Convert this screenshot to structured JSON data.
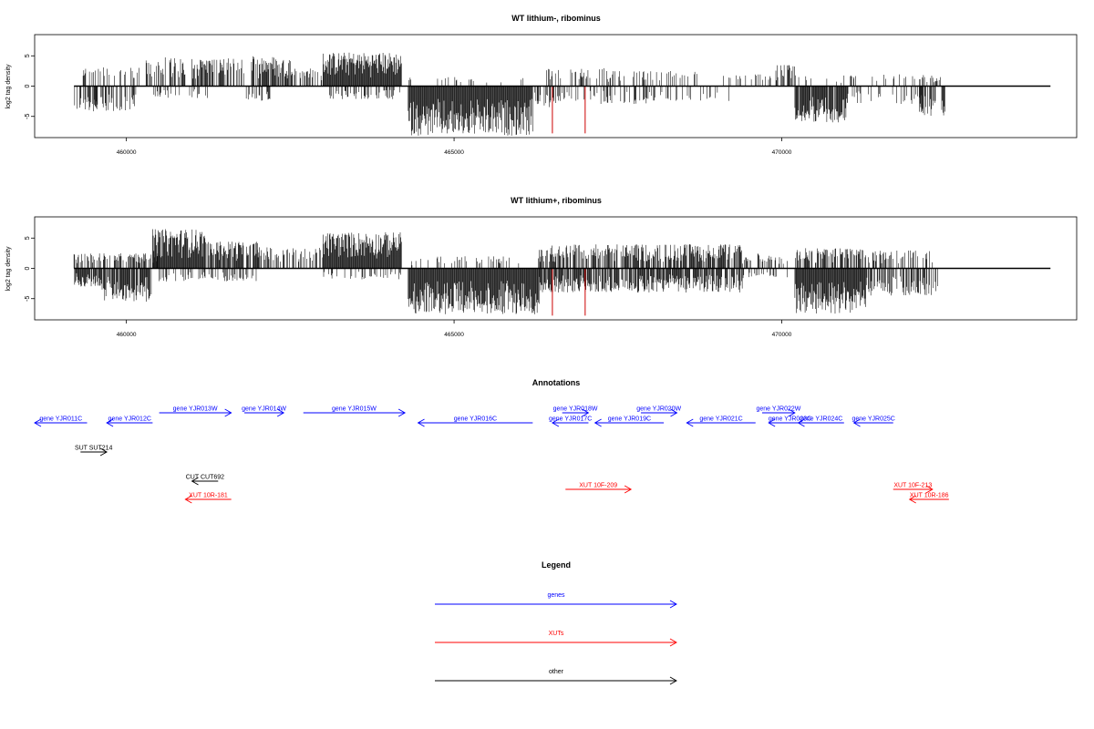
{
  "colors": {
    "gene": "#0000ff",
    "xut": "#ff0000",
    "other": "#000000",
    "red_mark": "#cc0000"
  },
  "chart_data": [
    {
      "type": "bar",
      "title": "WT lithium-, ribominus",
      "ylabel": "log2 tag density",
      "xlim": [
        458600,
        474500
      ],
      "ylim": [
        -8.5,
        8.5
      ],
      "xticks": [
        460000,
        465000,
        470000
      ],
      "xtick_labels": [
        "460000",
        "465000",
        "470000"
      ],
      "yticks": [
        5,
        0,
        -5
      ],
      "ytick_labels": [
        "5",
        "0",
        "-5"
      ],
      "baseline_range": [
        459200,
        474100
      ],
      "segments": [
        {
          "start": 459200,
          "end": 459550,
          "sign": -1,
          "amp": 4.0,
          "density": 0.6
        },
        {
          "start": 459300,
          "end": 460200,
          "sign": 1,
          "amp": 3.2,
          "density": 0.3
        },
        {
          "start": 459500,
          "end": 460150,
          "sign": -1,
          "amp": 4.2,
          "density": 0.5
        },
        {
          "start": 460300,
          "end": 460900,
          "sign": 1,
          "amp": 4.8,
          "density": 0.6
        },
        {
          "start": 460400,
          "end": 461300,
          "sign": -1,
          "amp": 2.0,
          "density": 0.25
        },
        {
          "start": 461000,
          "end": 461800,
          "sign": 1,
          "amp": 4.6,
          "density": 0.65
        },
        {
          "start": 461800,
          "end": 462200,
          "sign": -1,
          "amp": 2.5,
          "density": 0.4
        },
        {
          "start": 461900,
          "end": 462600,
          "sign": 1,
          "amp": 5.0,
          "density": 0.75
        },
        {
          "start": 462600,
          "end": 463000,
          "sign": 1,
          "amp": 3.0,
          "density": 0.4
        },
        {
          "start": 463000,
          "end": 464200,
          "sign": 1,
          "amp": 5.6,
          "density": 1.0
        },
        {
          "start": 463100,
          "end": 464200,
          "sign": -1,
          "amp": 2.2,
          "density": 0.3
        },
        {
          "start": 464300,
          "end": 466200,
          "sign": -1,
          "amp": 8.2,
          "density": 1.0
        },
        {
          "start": 464300,
          "end": 466100,
          "sign": 1,
          "amp": 1.5,
          "density": 0.1
        },
        {
          "start": 466200,
          "end": 466600,
          "sign": -1,
          "amp": 3.5,
          "density": 0.4
        },
        {
          "start": 466400,
          "end": 467300,
          "sign": 1,
          "amp": 3.0,
          "density": 0.3
        },
        {
          "start": 466500,
          "end": 468000,
          "sign": -1,
          "amp": 3.0,
          "density": 0.3
        },
        {
          "start": 467300,
          "end": 468800,
          "sign": 1,
          "amp": 2.5,
          "density": 0.25
        },
        {
          "start": 467800,
          "end": 469200,
          "sign": -1,
          "amp": 2.5,
          "density": 0.22
        },
        {
          "start": 469000,
          "end": 469900,
          "sign": 1,
          "amp": 2.0,
          "density": 0.18
        },
        {
          "start": 469900,
          "end": 470200,
          "sign": 1,
          "amp": 3.5,
          "density": 0.6
        },
        {
          "start": 470200,
          "end": 471000,
          "sign": -1,
          "amp": 6.0,
          "density": 0.9
        },
        {
          "start": 470200,
          "end": 471100,
          "sign": 1,
          "amp": 1.8,
          "density": 0.15
        },
        {
          "start": 471000,
          "end": 472200,
          "sign": -1,
          "amp": 3.0,
          "density": 0.18
        },
        {
          "start": 471100,
          "end": 472300,
          "sign": 1,
          "amp": 2.0,
          "density": 0.15
        },
        {
          "start": 472100,
          "end": 472500,
          "sign": -1,
          "amp": 5.0,
          "density": 0.5
        },
        {
          "start": 472100,
          "end": 472500,
          "sign": 1,
          "amp": 1.5,
          "density": 0.3
        }
      ],
      "red_marks": [
        466500,
        467000
      ],
      "red_mark_depth": -7.8
    },
    {
      "type": "bar",
      "title": "WT lithium+, ribominus",
      "ylabel": "log2 tag density",
      "xlim": [
        458600,
        474500
      ],
      "ylim": [
        -8.5,
        8.5
      ],
      "xticks": [
        460000,
        465000,
        470000
      ],
      "xtick_labels": [
        "460000",
        "465000",
        "470000"
      ],
      "yticks": [
        5,
        0,
        -5
      ],
      "ytick_labels": [
        "5",
        "0",
        "-5"
      ],
      "baseline_range": [
        459200,
        474100
      ],
      "segments": [
        {
          "start": 459200,
          "end": 459600,
          "sign": -1,
          "amp": 3.0,
          "density": 0.9
        },
        {
          "start": 459200,
          "end": 460500,
          "sign": 1,
          "amp": 2.5,
          "density": 0.5
        },
        {
          "start": 459600,
          "end": 460400,
          "sign": -1,
          "amp": 5.5,
          "density": 0.8
        },
        {
          "start": 460400,
          "end": 461200,
          "sign": 1,
          "amp": 6.5,
          "density": 1.0
        },
        {
          "start": 461200,
          "end": 462000,
          "sign": 1,
          "amp": 4.5,
          "density": 0.8
        },
        {
          "start": 460500,
          "end": 462000,
          "sign": -1,
          "amp": 2.2,
          "density": 0.3
        },
        {
          "start": 462000,
          "end": 463000,
          "sign": 1,
          "amp": 3.5,
          "density": 0.5
        },
        {
          "start": 463000,
          "end": 464200,
          "sign": 1,
          "amp": 6.0,
          "density": 1.0
        },
        {
          "start": 463000,
          "end": 464200,
          "sign": -1,
          "amp": 1.8,
          "density": 0.3
        },
        {
          "start": 464300,
          "end": 466300,
          "sign": -1,
          "amp": 7.6,
          "density": 1.0
        },
        {
          "start": 464300,
          "end": 466300,
          "sign": 1,
          "amp": 2.0,
          "density": 0.15
        },
        {
          "start": 466300,
          "end": 469400,
          "sign": 1,
          "amp": 4.0,
          "density": 0.75
        },
        {
          "start": 466300,
          "end": 469400,
          "sign": -1,
          "amp": 4.0,
          "density": 0.75
        },
        {
          "start": 469400,
          "end": 470100,
          "sign": 1,
          "amp": 2.5,
          "density": 0.3
        },
        {
          "start": 469400,
          "end": 470100,
          "sign": -1,
          "amp": 2.0,
          "density": 0.3
        },
        {
          "start": 470200,
          "end": 471300,
          "sign": -1,
          "amp": 7.5,
          "density": 1.0
        },
        {
          "start": 470200,
          "end": 471300,
          "sign": 1,
          "amp": 3.5,
          "density": 0.6
        },
        {
          "start": 471300,
          "end": 472300,
          "sign": 1,
          "amp": 3.0,
          "density": 0.5
        },
        {
          "start": 471300,
          "end": 472400,
          "sign": -1,
          "amp": 4.5,
          "density": 0.6
        }
      ],
      "red_marks": [
        466500,
        467000
      ],
      "red_mark_depth": -7.8
    }
  ],
  "annotations": {
    "title": "Annotations",
    "features": [
      {
        "label": "gene YJR011C",
        "start": 458600,
        "end": 459400,
        "strand": "-",
        "kind": "gene",
        "row": 1
      },
      {
        "label": "gene YJR012C",
        "start": 459700,
        "end": 460400,
        "strand": "-",
        "kind": "gene",
        "row": 1
      },
      {
        "label": "gene YJR013W",
        "start": 460500,
        "end": 461600,
        "strand": "+",
        "kind": "gene",
        "row": 0
      },
      {
        "label": "gene YJR014W",
        "start": 461800,
        "end": 462400,
        "strand": "+",
        "kind": "gene",
        "row": 0
      },
      {
        "label": "gene YJR015W",
        "start": 462700,
        "end": 464250,
        "strand": "+",
        "kind": "gene",
        "row": 0
      },
      {
        "label": "gene YJR016C",
        "start": 464450,
        "end": 466200,
        "strand": "-",
        "kind": "gene",
        "row": 1
      },
      {
        "label": "gene YJR017C",
        "start": 466500,
        "end": 467050,
        "strand": "-",
        "kind": "gene",
        "row": 1
      },
      {
        "label": "gene YJR018W",
        "start": 466650,
        "end": 467050,
        "strand": "+",
        "kind": "gene",
        "row": 0
      },
      {
        "label": "gene YJR019C",
        "start": 467150,
        "end": 468200,
        "strand": "-",
        "kind": "gene",
        "row": 1
      },
      {
        "label": "gene YJR020W",
        "start": 467850,
        "end": 468400,
        "strand": "+",
        "kind": "gene",
        "row": 0
      },
      {
        "label": "gene YJR021C",
        "start": 468550,
        "end": 469600,
        "strand": "-",
        "kind": "gene",
        "row": 1
      },
      {
        "label": "gene YJR022W",
        "start": 469700,
        "end": 470200,
        "strand": "+",
        "kind": "gene",
        "row": 0
      },
      {
        "label": "gene YJR023C",
        "start": 469800,
        "end": 470450,
        "strand": "-",
        "kind": "gene",
        "row": 1
      },
      {
        "label": "gene YJR024C",
        "start": 470250,
        "end": 470950,
        "strand": "-",
        "kind": "gene",
        "row": 1
      },
      {
        "label": "gene YJR025C",
        "start": 471100,
        "end": 471700,
        "strand": "-",
        "kind": "gene",
        "row": 1
      },
      {
        "label": "SUT SUT214",
        "start": 459300,
        "end": 459700,
        "strand": "+",
        "kind": "other",
        "row": 3
      },
      {
        "label": "CUT CUT692",
        "start": 461000,
        "end": 461400,
        "strand": "-",
        "kind": "other",
        "row": 6
      },
      {
        "label": "XUT 10R-181",
        "start": 460900,
        "end": 461600,
        "strand": "-",
        "kind": "xut",
        "row": 8
      },
      {
        "label": "XUT 10F-209",
        "start": 466700,
        "end": 467700,
        "strand": "+",
        "kind": "xut",
        "row": 7
      },
      {
        "label": "XUT 10F-213",
        "start": 471700,
        "end": 472300,
        "strand": "+",
        "kind": "xut",
        "row": 7
      },
      {
        "label": "XUT 10R-186",
        "start": 471950,
        "end": 472550,
        "strand": "-",
        "kind": "xut",
        "row": 8
      }
    ]
  },
  "legend": {
    "title": "Legend",
    "items": [
      {
        "label": "genes",
        "kind": "gene"
      },
      {
        "label": "XUTs",
        "kind": "xut"
      },
      {
        "label": "other",
        "kind": "other"
      }
    ]
  }
}
